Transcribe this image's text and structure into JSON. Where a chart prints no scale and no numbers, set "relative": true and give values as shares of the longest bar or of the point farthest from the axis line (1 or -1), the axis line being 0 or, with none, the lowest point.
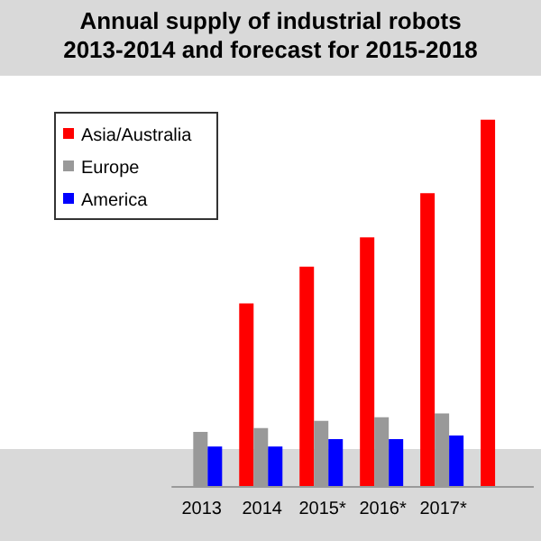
{
  "chart_data": {
    "type": "bar",
    "title": "Annual supply of industrial robots\n2013-2014 and forecast for 2015-2018",
    "categories": [
      "2013",
      "2014",
      "2015*",
      "2016*",
      "2017*",
      null
    ],
    "relative": true,
    "legend": "top left",
    "series": [
      {
        "name": "Asia/Australia",
        "color": "#ff0000",
        "values": [
          null,
          0.5,
          0.6,
          0.68,
          0.8,
          1
        ]
      },
      {
        "name": "Europe",
        "color": "#999999",
        "values": [
          0.15,
          0.16,
          0.18,
          0.19,
          0.2,
          null
        ]
      },
      {
        "name": "America",
        "color": "#0000ff",
        "values": [
          0.11,
          0.11,
          0.13,
          0.13,
          0.14,
          null
        ]
      }
    ]
  }
}
